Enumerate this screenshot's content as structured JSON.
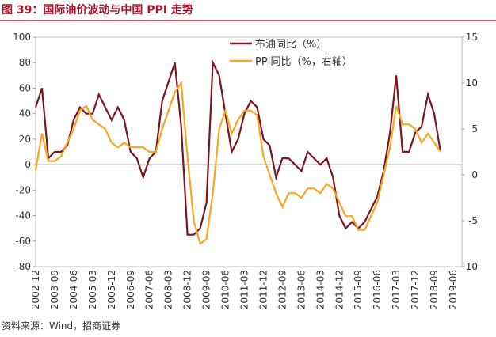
{
  "chart_data": {
    "type": "line",
    "title": "图 39：国际油价波动与中国 PPI 走势",
    "source": "资料来源：Wind，招商证券",
    "categories": [
      "2002-12",
      null,
      null,
      "2003-09",
      null,
      null,
      "2004-06",
      null,
      null,
      "2005-03",
      null,
      null,
      "2005-12",
      null,
      null,
      "2006-09",
      null,
      null,
      "2007-06",
      null,
      null,
      "2008-03",
      null,
      null,
      "2008-12",
      null,
      null,
      "2009-09",
      null,
      null,
      "2010-06",
      null,
      null,
      "2011-03",
      null,
      null,
      "2011-12",
      null,
      null,
      "2012-09",
      null,
      null,
      "2013-06",
      null,
      null,
      "2014-03",
      null,
      null,
      "2014-12",
      null,
      null,
      "2015-09",
      null,
      null,
      "2016-06",
      null,
      null,
      "2017-03",
      null,
      null,
      "2017-12",
      null,
      null,
      "2018-09",
      null,
      null,
      "2019-06"
    ],
    "series": [
      {
        "name": "布油同比（%）",
        "color": "#7b1522",
        "values": [
          45,
          60,
          5,
          10,
          10,
          15,
          35,
          45,
          40,
          40,
          55,
          45,
          35,
          45,
          35,
          10,
          5,
          -10,
          5,
          10,
          50,
          65,
          80,
          30,
          -55,
          -55,
          -50,
          -30,
          80,
          70,
          40,
          10,
          20,
          40,
          50,
          45,
          20,
          15,
          -10,
          5,
          5,
          0,
          -5,
          10,
          5,
          0,
          5,
          -10,
          -40,
          -50,
          -45,
          -50,
          -45,
          -35,
          -25,
          -5,
          25,
          70,
          10,
          10,
          25,
          30,
          55,
          40,
          10,
          null,
          null
        ]
      },
      {
        "name": "PPI同比（%，右轴）",
        "color": "#f5a623",
        "axis": "y2",
        "values": [
          0.5,
          4.5,
          1.5,
          1.5,
          2,
          3.5,
          5,
          7,
          7.5,
          6,
          5.5,
          5,
          3.5,
          3,
          3.5,
          3,
          3,
          3,
          2.5,
          2.5,
          5,
          7,
          9,
          10,
          2,
          -5,
          -7.5,
          -7,
          -2,
          5,
          7,
          4.5,
          6,
          7,
          7,
          6.5,
          2,
          0,
          -2,
          -3.5,
          -2,
          -2,
          -2.5,
          -1.5,
          -1.5,
          -2,
          -1,
          -1.5,
          -3,
          -4.5,
          -4.5,
          -6,
          -6,
          -4.5,
          -3,
          0,
          3,
          7.5,
          5.5,
          5.5,
          5,
          3.5,
          4.5,
          3.5,
          2.5,
          null,
          null
        ]
      }
    ],
    "ylim": [
      -80,
      100
    ],
    "yticks": [
      -80,
      -60,
      -40,
      -20,
      0,
      20,
      40,
      60,
      80,
      100
    ],
    "y2lim": [
      -10,
      15
    ],
    "y2ticks": [
      -10,
      -5,
      0,
      5,
      10,
      15
    ],
    "legend": "top"
  }
}
